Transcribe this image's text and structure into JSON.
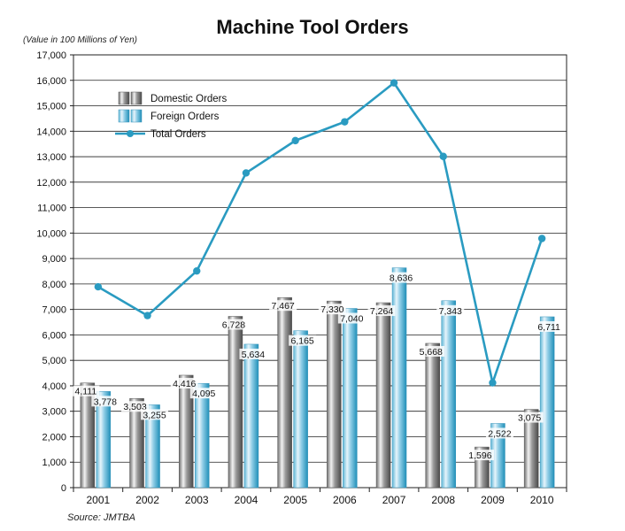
{
  "chart_data": {
    "type": "bar",
    "title": "Machine Tool Orders",
    "unit_note": "(Value in 100 Millions of Yen)",
    "source": "Source: JMTBA",
    "categories": [
      "2001",
      "2002",
      "2003",
      "2004",
      "2005",
      "2006",
      "2007",
      "2008",
      "2009",
      "2010"
    ],
    "series": [
      {
        "name": "Domestic Orders",
        "kind": "bar",
        "color": "#8c8c8c",
        "values": [
          4111,
          3503,
          4416,
          6728,
          7467,
          7330,
          7264,
          5668,
          1596,
          3075
        ],
        "labels": [
          "4,111",
          "3,503",
          "4,416",
          "6,728",
          "7,467",
          "7,330",
          "7,264",
          "5,668",
          "1,596",
          "3,075"
        ]
      },
      {
        "name": "Foreign Orders",
        "kind": "bar",
        "color": "#4fb3d9",
        "values": [
          3778,
          3255,
          4095,
          5634,
          6165,
          7040,
          8636,
          7343,
          2522,
          6711
        ],
        "labels": [
          "3,778",
          "3,255",
          "4,095",
          "5,634",
          "6,165",
          "7,040",
          "8,636",
          "7,343",
          "2,522",
          "6,711"
        ]
      },
      {
        "name": "Total Orders",
        "kind": "line",
        "color": "#2a9bc1",
        "values": [
          7889,
          6758,
          8511,
          12362,
          13632,
          14370,
          15900,
          13011,
          4118,
          9786
        ]
      }
    ],
    "ylim": [
      0,
      17000
    ],
    "yticks": [
      0,
      1000,
      2000,
      3000,
      4000,
      5000,
      6000,
      7000,
      8000,
      9000,
      10000,
      11000,
      12000,
      13000,
      14000,
      15000,
      16000,
      17000
    ],
    "ytick_labels": [
      "0",
      "1,000",
      "2,000",
      "3,000",
      "4,000",
      "5,000",
      "6,000",
      "7,000",
      "8,000",
      "9,000",
      "10,000",
      "11,000",
      "12,000",
      "13,000",
      "14,000",
      "15,000",
      "16,000",
      "17,000"
    ],
    "grid": true,
    "legend_position": "top-left"
  }
}
